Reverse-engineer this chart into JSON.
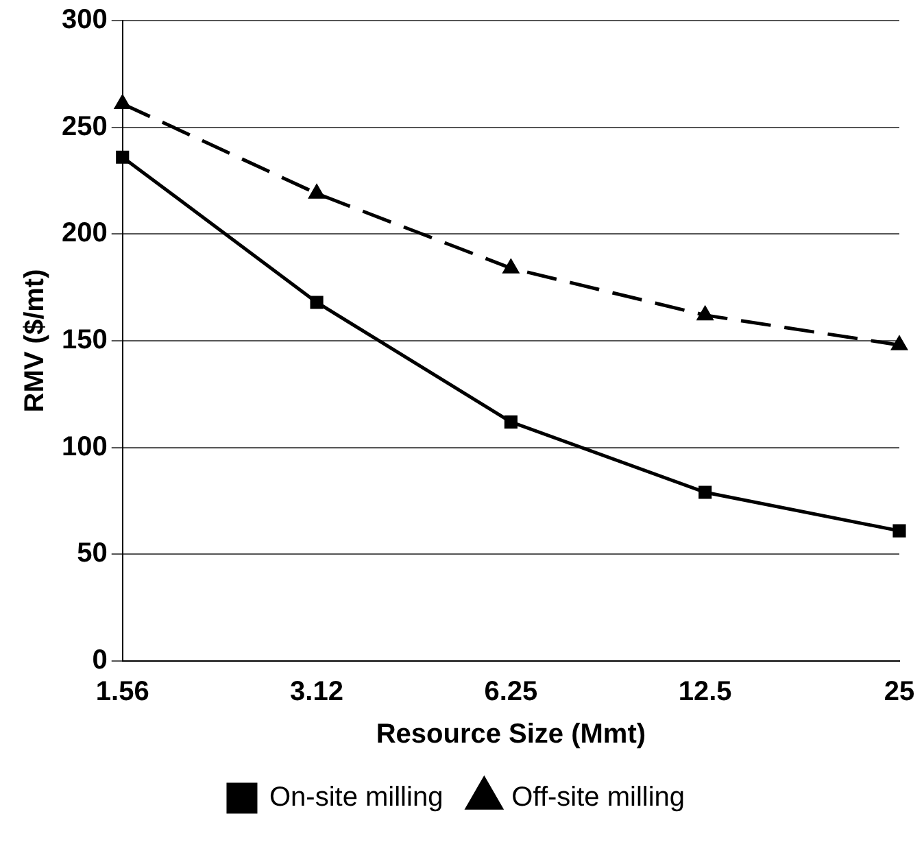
{
  "chart_data": {
    "type": "line",
    "xlabel": "Resource Size (Mmt)",
    "ylabel": "RMV ($/mt)",
    "categories": [
      "1.56",
      "3.12",
      "6.25",
      "12.5",
      "25"
    ],
    "series": [
      {
        "name": "On-site milling",
        "color": "#000000",
        "marker": "square",
        "line_style": "solid",
        "values": [
          236,
          168,
          112,
          79,
          61
        ]
      },
      {
        "name": "Off-site milling",
        "color": "#000000",
        "marker": "triangle",
        "line_style": "dashed",
        "values": [
          261,
          219,
          184,
          162,
          148
        ]
      }
    ],
    "ylim": [
      0,
      300
    ],
    "yticks": [
      0,
      50,
      100,
      150,
      200,
      250,
      300
    ],
    "grid": "y",
    "legend": "bottom"
  }
}
